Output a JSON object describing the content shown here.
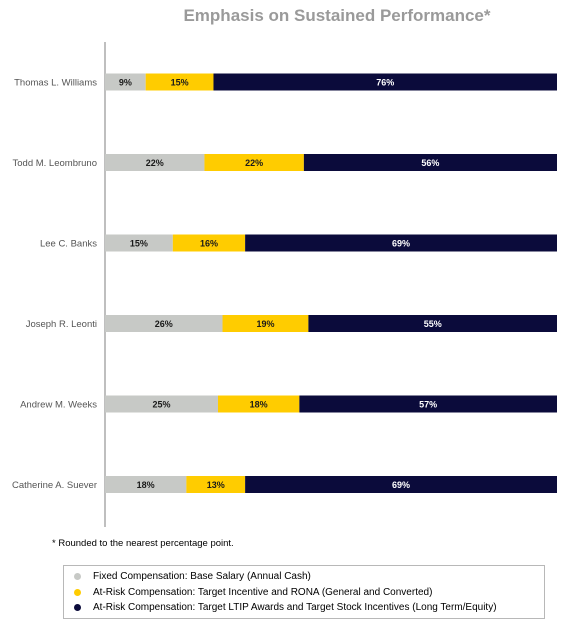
{
  "chart_data": {
    "type": "bar",
    "stacked": true,
    "orientation": "horizontal",
    "title": "Emphasis on Sustained Performance*",
    "categories": [
      "Thomas L. Williams",
      "Todd M. Leombruno",
      "Lee C. Banks",
      "Joseph R. Leonti",
      "Andrew M. Weeks",
      "Catherine A. Suever"
    ],
    "series": [
      {
        "name": "Fixed Compensation: Base Salary (Annual Cash)",
        "color": "#c7c9c6",
        "values": [
          9,
          22,
          15,
          26,
          25,
          18
        ],
        "labels": [
          "9%",
          "22%",
          "15%",
          "26%",
          "25%",
          "18%"
        ]
      },
      {
        "name": "At-Risk Compensation: Target Incentive and RONA (General and Converted)",
        "color": "#ffcc00",
        "values": [
          15,
          22,
          16,
          19,
          18,
          13
        ],
        "labels": [
          "15%",
          "22%",
          "16%",
          "19%",
          "18%",
          "13%"
        ]
      },
      {
        "name": "At-Risk Compensation: Target LTIP Awards and Target Stock Incentives (Long Term/Equity)",
        "color": "#0b0b3b",
        "values": [
          76,
          56,
          69,
          55,
          57,
          69
        ],
        "labels": [
          "76%",
          "56%",
          "69%",
          "55%",
          "57%",
          "69%"
        ]
      }
    ],
    "xlim": [
      0,
      100
    ]
  },
  "footnote": "* Rounded to the nearest percentage point."
}
